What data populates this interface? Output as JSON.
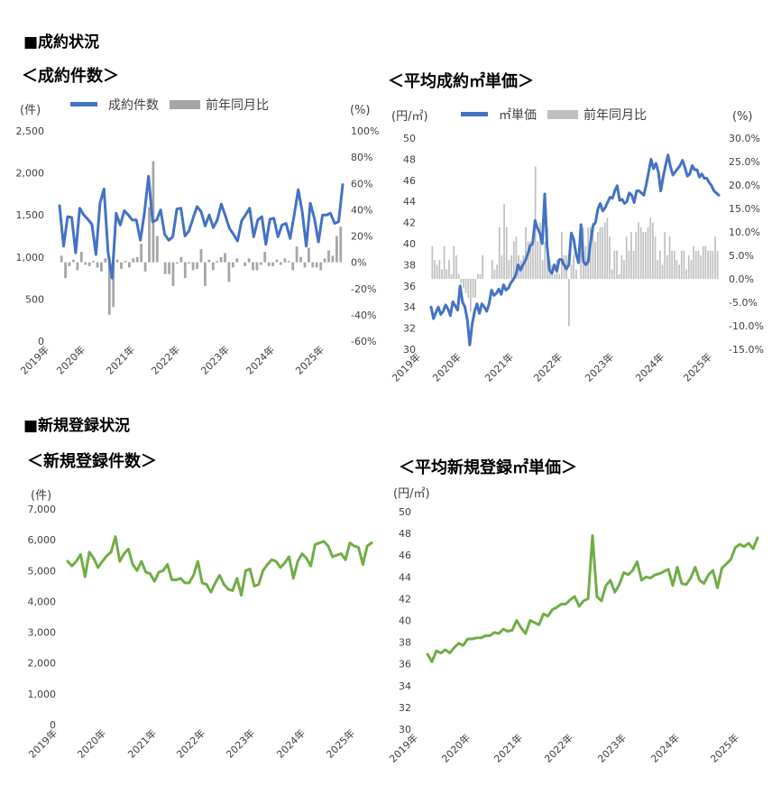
{
  "sections": {
    "contracts_heading": "■成約状況",
    "registrations_heading": "■新規登録状況"
  },
  "chart_data": [
    {
      "id": "contract_count",
      "type": "bar+line",
      "title": "＜成約件数＞",
      "y_unit_left": "(件)",
      "y_unit_right": "(%)",
      "legend": [
        "成約件数",
        "前年同月比"
      ],
      "ylim_left": [
        0,
        2500
      ],
      "ylim_right": [
        -60,
        100
      ],
      "yticks_left": [
        "2,500",
        "2,000",
        "1,500",
        "1,000",
        "500",
        "0"
      ],
      "yticks_right": [
        "100%",
        "80%",
        "60%",
        "40%",
        "20%",
        "0%",
        "-20%",
        "-40%",
        "-60%"
      ],
      "x_labels": [
        "2019年",
        "2020年",
        "2021年",
        "2022年",
        "2023年",
        "2024年",
        "2025年"
      ],
      "start": "2019-01",
      "colors": {
        "line": "#4472C4",
        "bar": "#A6A6A6"
      },
      "series": [
        {
          "name": "成約件数",
          "kind": "line",
          "axis": "left",
          "values": [
            1610,
            1130,
            1480,
            1470,
            1050,
            1580,
            1500,
            1450,
            1390,
            1030,
            1640,
            1810,
            1060,
            750,
            1520,
            1380,
            1550,
            1500,
            1440,
            1440,
            1200,
            1530,
            1960,
            1420,
            1440,
            1560,
            1270,
            1200,
            1240,
            1570,
            1580,
            1250,
            1310,
            1460,
            1600,
            1540,
            1370,
            1500,
            1350,
            1440,
            1630,
            1490,
            1340,
            1270,
            1190,
            1430,
            1500,
            1580,
            1240,
            1440,
            1480,
            1150,
            1450,
            1460,
            1240,
            1380,
            1400,
            1220,
            1500,
            1800,
            1540,
            1130,
            1640,
            1460,
            1180,
            1500,
            1500,
            1520,
            1400,
            1420,
            1860
          ]
        },
        {
          "name": "前年同月比",
          "kind": "bar",
          "axis": "right",
          "values": [
            5,
            -12,
            -3,
            2,
            -6,
            8,
            -2,
            -3,
            1,
            -4,
            -7,
            3,
            -40,
            -34,
            2,
            -5,
            1,
            -4,
            3,
            4,
            14,
            -7,
            42,
            77,
            20,
            0,
            -9,
            -9,
            -18,
            -1,
            4,
            -12,
            -1,
            -6,
            -5,
            10,
            -18,
            2,
            -6,
            1,
            4,
            7,
            -15,
            -4,
            3,
            0,
            -3,
            3,
            -6,
            -6,
            -2,
            8,
            -3,
            -3,
            2,
            -2,
            3,
            1,
            -6,
            12,
            4,
            -4,
            11,
            -4,
            -4,
            -6,
            3,
            9,
            5,
            20,
            27
          ]
        }
      ]
    },
    {
      "id": "contract_price",
      "type": "bar+line",
      "title": "＜平均成約㎡単価＞",
      "y_unit_left": "(円/㎡)",
      "y_unit_right": "(%)",
      "legend": [
        "㎡単価",
        "前年同月比"
      ],
      "ylim_left": [
        30,
        50
      ],
      "ylim_right": [
        -15,
        30
      ],
      "yticks_left": [
        "50",
        "48",
        "46",
        "44",
        "42",
        "40",
        "38",
        "36",
        "34",
        "32",
        "30"
      ],
      "yticks_right": [
        "30.0%",
        "25.0%",
        "20.0%",
        "15.0%",
        "10.0%",
        "5.0%",
        "0.0%",
        "-5.0%",
        "-10.0%",
        "-15.0%"
      ],
      "x_labels": [
        "2019年",
        "2020年",
        "2021年",
        "2022年",
        "2023年",
        "2024年",
        "2025年"
      ],
      "start": "2019-01",
      "colors": {
        "line": "#4472C4",
        "bar": "#BFBFBF"
      },
      "series": [
        {
          "name": "㎡単価",
          "kind": "line",
          "axis": "left",
          "values": [
            34.0,
            32.9,
            33.5,
            34.0,
            33.3,
            33.6,
            34.2,
            33.8,
            33.2,
            34.5,
            34.1,
            33.7,
            36.0,
            34.5,
            34.0,
            32.8,
            30.4,
            32.4,
            33.6,
            34.3,
            33.4,
            34.3,
            34.0,
            33.6,
            34.3,
            35.6,
            35.1,
            35.3,
            35.7,
            35.2,
            36.1,
            35.6,
            35.8,
            36.3,
            36.6,
            37.0,
            38.0,
            37.5,
            38.0,
            38.4,
            39.0,
            39.8,
            40.0,
            42.2,
            41.5,
            41.0,
            40.0,
            44.7,
            39.7,
            37.5,
            37.2,
            38.0,
            37.4,
            38.5,
            38.5,
            38.0,
            37.6,
            38.0,
            41.0,
            40.4,
            39.0,
            38.2,
            41.8,
            38.3,
            38.0,
            38.3,
            40.2,
            41.7,
            42.0,
            43.3,
            43.8,
            43.1,
            43.4,
            43.9,
            44.4,
            44.3,
            45.0,
            45.5,
            44.1,
            44.2,
            43.8,
            44.0,
            44.8,
            44.6,
            43.9,
            45.0,
            45.0,
            44.8,
            44.6,
            45.6,
            46.8,
            48.0,
            47.1,
            47.6,
            46.8,
            45.0,
            46.3,
            47.4,
            48.4,
            47.3,
            46.5,
            46.8,
            47.1,
            47.4,
            47.9,
            47.2,
            46.4,
            46.6,
            47.4,
            47.0,
            47.0,
            46.3,
            46.6,
            46.2,
            46.2,
            45.8,
            45.5,
            45.0,
            44.8,
            44.6
          ]
        },
        {
          "name": "前年同月比",
          "kind": "bar",
          "axis": "right",
          "values": [
            7,
            4,
            3,
            4,
            2,
            7,
            2,
            4,
            1,
            7,
            5,
            1,
            -1,
            -2,
            -3,
            -4,
            -7,
            -4,
            -4,
            1,
            1,
            5,
            0,
            0,
            0,
            4,
            2,
            3,
            11,
            5,
            16,
            11,
            4,
            5,
            8,
            9,
            5,
            4,
            5,
            11,
            8,
            8,
            9,
            24,
            8,
            12,
            4,
            8,
            11,
            4,
            3,
            1,
            4,
            1,
            10,
            5,
            5,
            -10,
            3,
            5,
            2,
            0,
            9,
            11,
            7,
            11,
            11,
            12,
            8,
            10,
            11,
            11,
            12,
            13,
            9,
            2,
            6,
            6,
            1,
            5,
            4,
            9,
            6,
            10,
            6,
            10,
            12,
            11,
            10,
            10,
            11,
            13,
            12,
            9,
            4,
            6,
            3,
            10,
            5,
            9,
            6,
            6,
            4,
            3,
            6,
            6,
            2,
            5,
            4,
            7,
            6,
            6,
            5,
            7,
            7,
            6,
            6,
            6,
            9,
            6
          ]
        }
      ]
    },
    {
      "id": "registration_count",
      "type": "line",
      "title": "＜新規登録件数＞",
      "y_unit_left": "(件)",
      "ylim_left": [
        0,
        7000
      ],
      "yticks_left": [
        "7,000",
        "6,000",
        "5,000",
        "4,000",
        "3,000",
        "2,000",
        "1,000",
        "0"
      ],
      "x_labels": [
        "2019年",
        "2020年",
        "2021年",
        "2022年",
        "2023年",
        "2024年",
        "2025年"
      ],
      "start": "2019-01",
      "colors": {
        "line": "#70AD47"
      },
      "series": [
        {
          "name": "",
          "kind": "line",
          "axis": "left",
          "values": [
            5300,
            5150,
            5300,
            5520,
            4800,
            5600,
            5400,
            5100,
            5300,
            5480,
            5600,
            6100,
            5300,
            5550,
            5700,
            5200,
            5000,
            5300,
            4950,
            4900,
            4650,
            4950,
            5000,
            5200,
            4700,
            4700,
            4750,
            4600,
            4600,
            4850,
            5300,
            4600,
            4550,
            4300,
            4600,
            4850,
            4550,
            4400,
            4350,
            4750,
            4200,
            5000,
            5050,
            4500,
            4550,
            5000,
            5200,
            5350,
            5300,
            5100,
            5250,
            5450,
            4750,
            5300,
            5550,
            5400,
            5150,
            5850,
            5900,
            5950,
            5800,
            5450,
            5500,
            5550,
            5350,
            5900,
            5800,
            5750,
            5200,
            5800,
            5900
          ]
        }
      ]
    },
    {
      "id": "registration_price",
      "type": "line",
      "title": "＜平均新規登録㎡単価＞",
      "y_unit_left": "(円/㎡)",
      "ylim_left": [
        30,
        50
      ],
      "yticks_left": [
        "50",
        "48",
        "46",
        "44",
        "42",
        "40",
        "38",
        "36",
        "34",
        "32",
        "30"
      ],
      "x_labels": [
        "2019年",
        "2020年",
        "2021年",
        "2022年",
        "2023年",
        "2024年",
        "2025年"
      ],
      "start": "2019-01",
      "colors": {
        "line": "#70AD47"
      },
      "series": [
        {
          "name": "",
          "kind": "line",
          "axis": "left",
          "values": [
            36.9,
            36.2,
            37.2,
            37.0,
            37.3,
            37.0,
            37.5,
            37.9,
            37.7,
            38.3,
            38.3,
            38.4,
            38.4,
            38.6,
            38.6,
            38.9,
            38.8,
            39.2,
            39.0,
            39.1,
            40.0,
            39.3,
            38.8,
            40.0,
            39.8,
            39.6,
            40.6,
            40.4,
            41.0,
            41.2,
            41.5,
            41.5,
            41.9,
            42.2,
            41.3,
            41.8,
            42.0,
            47.8,
            42.2,
            41.8,
            43.2,
            43.7,
            42.6,
            43.3,
            44.4,
            44.2,
            44.6,
            45.4,
            43.7,
            44.0,
            43.9,
            44.2,
            44.3,
            44.5,
            44.7,
            43.2,
            44.9,
            43.4,
            43.3,
            43.9,
            44.9,
            43.7,
            43.4,
            44.2,
            44.6,
            43.0,
            44.8,
            45.2,
            45.6,
            46.7,
            47.0,
            46.8,
            47.1,
            46.6,
            47.6
          ]
        }
      ]
    }
  ]
}
